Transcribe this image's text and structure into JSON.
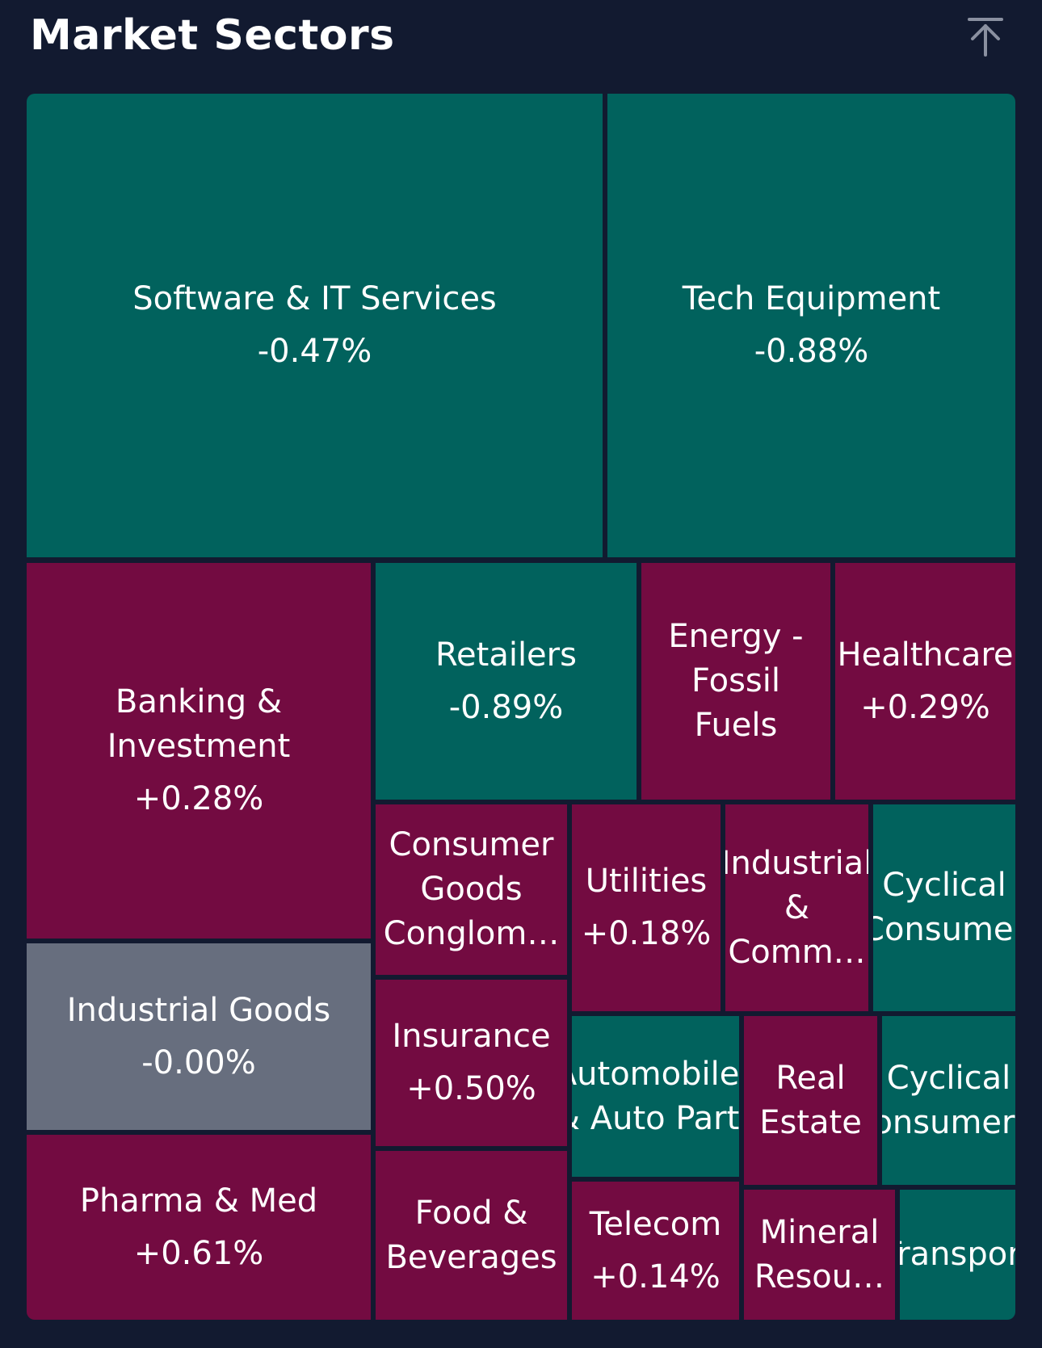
{
  "header": {
    "title": "Market Sectors",
    "scroll_top_icon": "arrow-up-to-top-icon"
  },
  "colors": {
    "background": "#121a30",
    "negative": "#01625d",
    "positive": "#730b41",
    "neutral": "#676e7e"
  },
  "sectors": [
    {
      "name": "Software & IT Services",
      "change": "-0.47%"
    },
    {
      "name": "Tech Equipment",
      "change": "-0.88%"
    },
    {
      "name": "Banking & Investment",
      "change": "+0.28%"
    },
    {
      "name": "Retailers",
      "change": "-0.89%"
    },
    {
      "name": "Energy - Fossil Fuels",
      "change": ""
    },
    {
      "name": "Healthcare",
      "change": "+0.29%"
    },
    {
      "name": "Industrial Goods",
      "change": "-0.00%"
    },
    {
      "name": "Consumer Goods Conglom…",
      "change": ""
    },
    {
      "name": "Utilities",
      "change": "+0.18%"
    },
    {
      "name": "Industrial & Comm…",
      "change": ""
    },
    {
      "name": "Cyclical Consumer",
      "change": ""
    },
    {
      "name": "Insurance",
      "change": "+0.50%"
    },
    {
      "name": "Automobiles & Auto Parts",
      "change": ""
    },
    {
      "name": "Real Estate",
      "change": ""
    },
    {
      "name": "Cyclical Consumer…",
      "change": ""
    },
    {
      "name": "Pharma & Med",
      "change": "+0.61%"
    },
    {
      "name": "Food & Beverages",
      "change": ""
    },
    {
      "name": "Telecom",
      "change": "+0.14%"
    },
    {
      "name": "Mineral Resou…",
      "change": ""
    },
    {
      "name": "Transport",
      "change": ""
    }
  ]
}
